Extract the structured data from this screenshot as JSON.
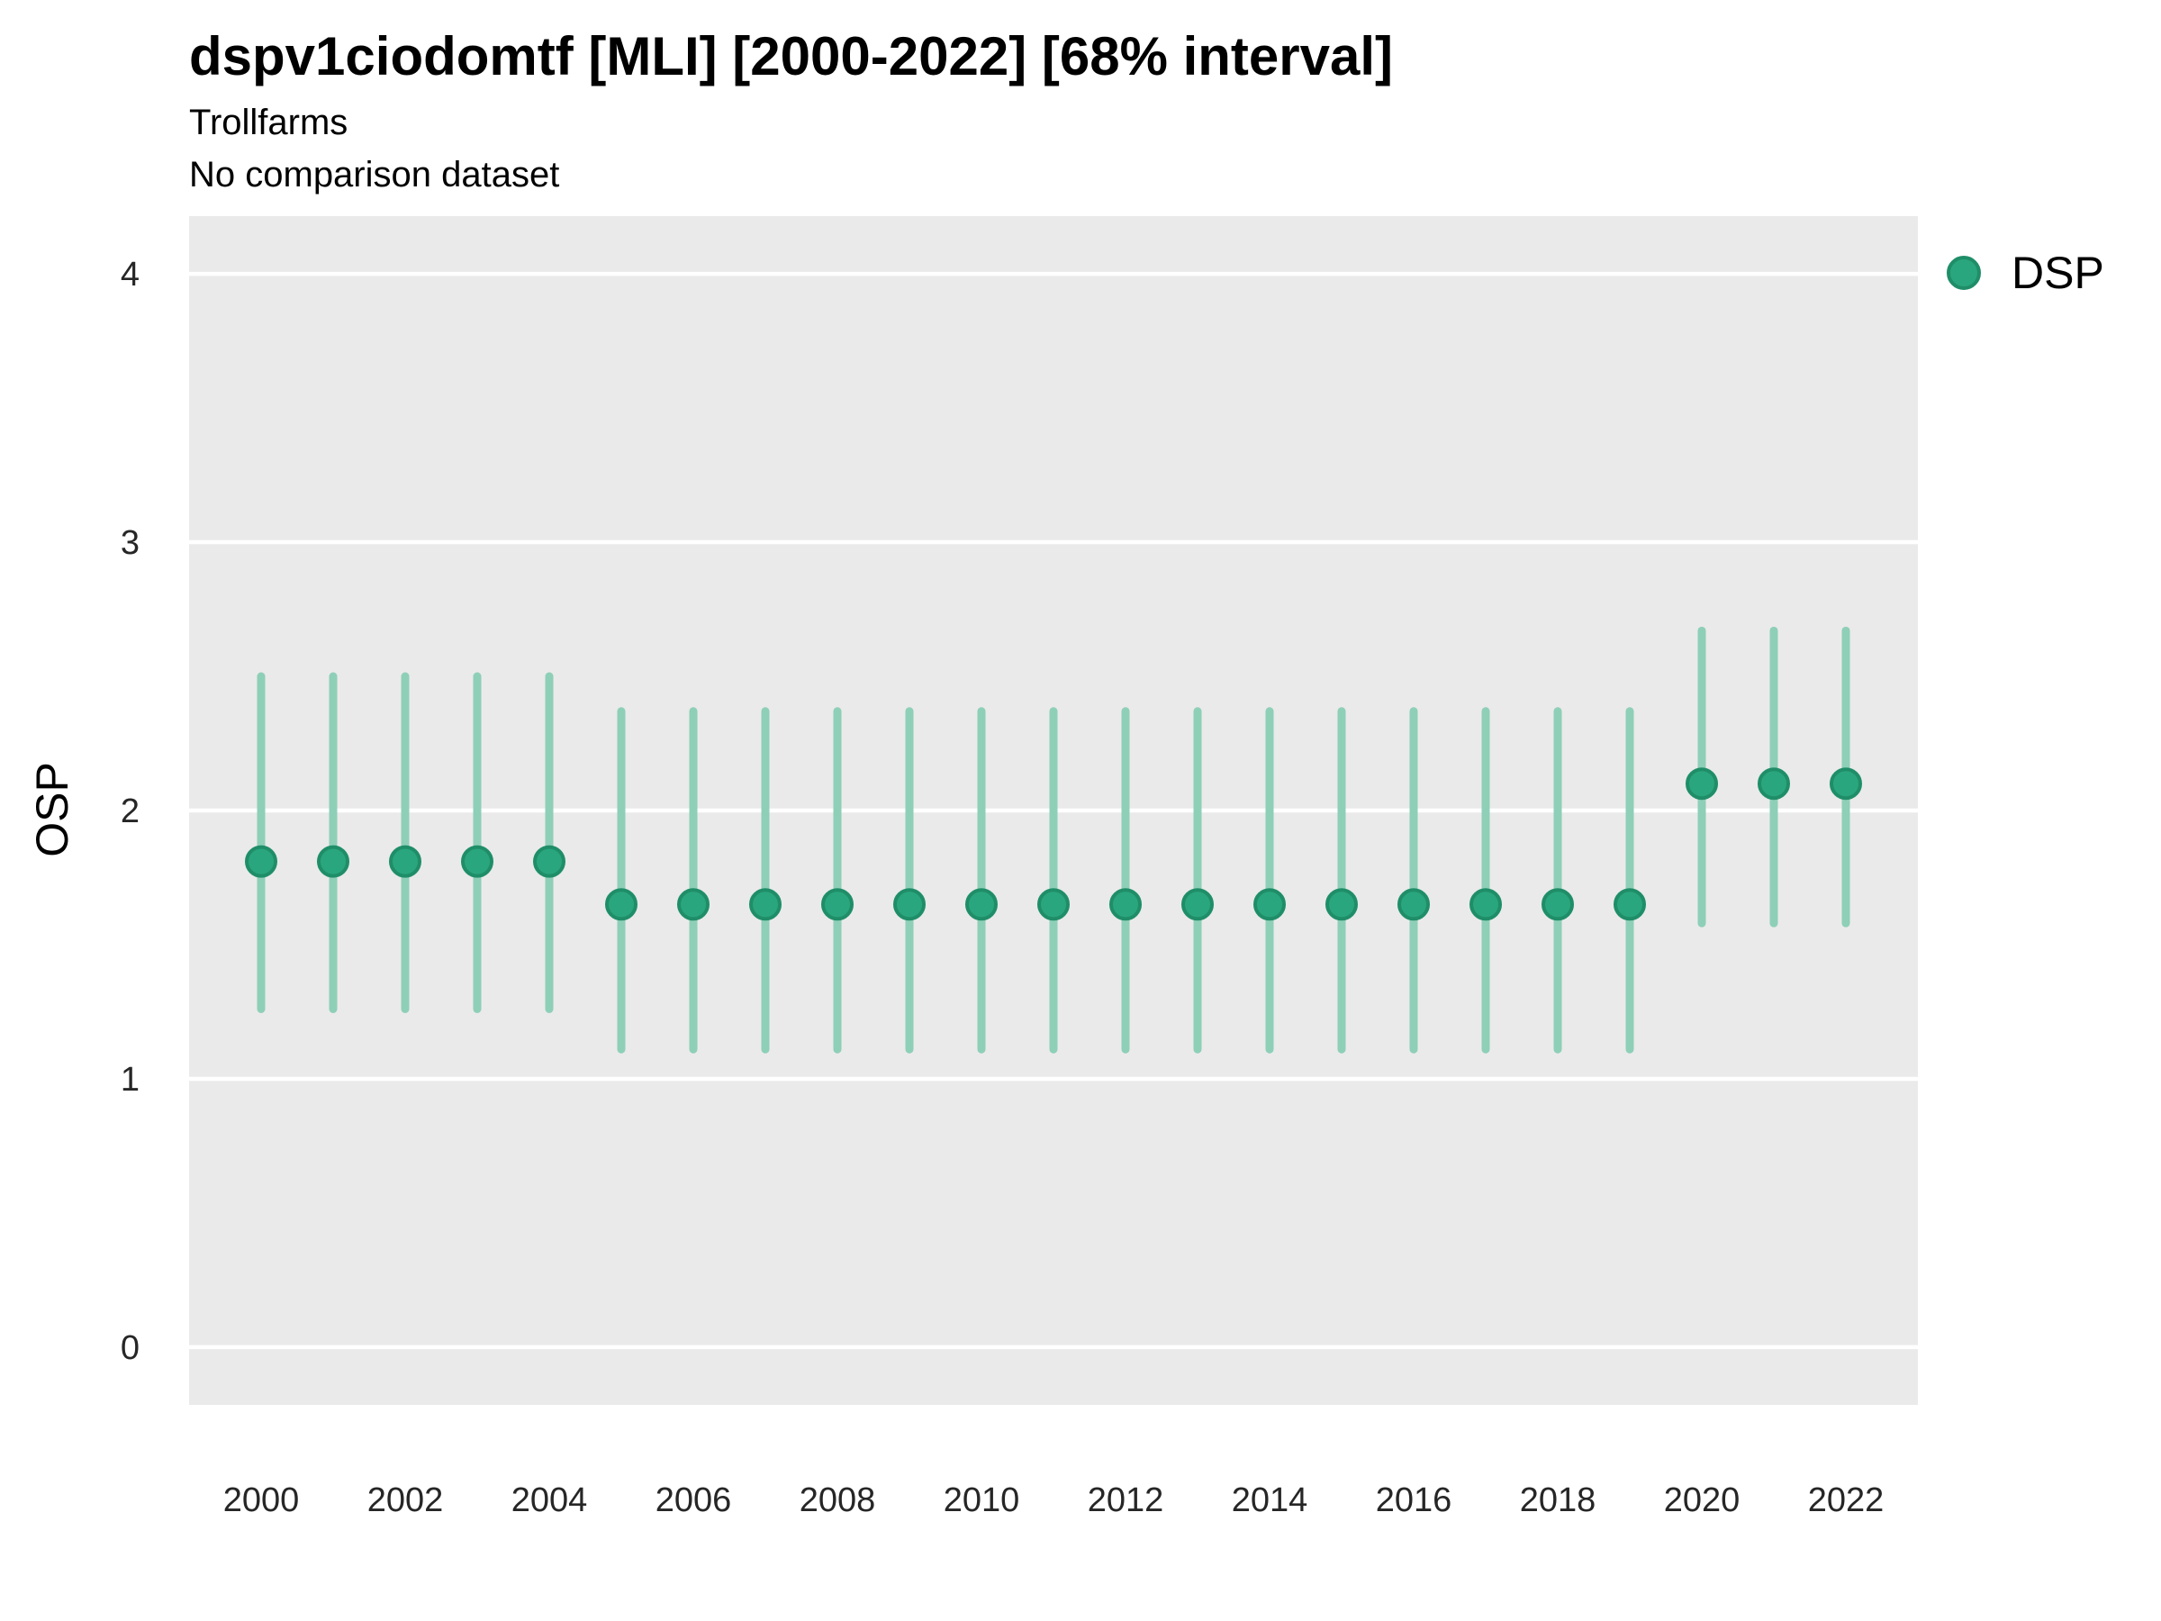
{
  "chart_data": {
    "type": "pointrange",
    "title": "dspv1ciodomtf [MLI] [2000-2022] [68% interval]",
    "subtitle": "Trollfarms",
    "note": "No comparison dataset",
    "xlabel": "",
    "ylabel": "OSP",
    "interval_level": "68%",
    "legend_position": "right",
    "legend": [
      {
        "label": "DSP",
        "color": "#2aa67e"
      }
    ],
    "x_tick_labels": [
      "2000",
      "2002",
      "2004",
      "2006",
      "2008",
      "2010",
      "2012",
      "2014",
      "2016",
      "2018",
      "2020",
      "2022"
    ],
    "y_ticks": [
      0,
      1,
      2,
      3,
      4
    ],
    "ylim": [
      -0.215,
      4.215
    ],
    "xlim": [
      1999,
      2023
    ],
    "grid": "horizontal-major-white",
    "colors": {
      "panel_bg": "#eaeaea",
      "gridline": "#ffffff",
      "point_fill": "#2aa67e",
      "point_stroke": "#1f8e68",
      "interval_line": "#8ecfb8",
      "tick_text": "#262626"
    },
    "series": [
      {
        "name": "DSP",
        "points": [
          {
            "x": 2000,
            "y": 1.81,
            "lo": 1.26,
            "hi": 2.5
          },
          {
            "x": 2001,
            "y": 1.81,
            "lo": 1.26,
            "hi": 2.5
          },
          {
            "x": 2002,
            "y": 1.81,
            "lo": 1.26,
            "hi": 2.5
          },
          {
            "x": 2003,
            "y": 1.81,
            "lo": 1.26,
            "hi": 2.5
          },
          {
            "x": 2004,
            "y": 1.81,
            "lo": 1.26,
            "hi": 2.5
          },
          {
            "x": 2005,
            "y": 1.65,
            "lo": 1.11,
            "hi": 2.37
          },
          {
            "x": 2006,
            "y": 1.65,
            "lo": 1.11,
            "hi": 2.37
          },
          {
            "x": 2007,
            "y": 1.65,
            "lo": 1.11,
            "hi": 2.37
          },
          {
            "x": 2008,
            "y": 1.65,
            "lo": 1.11,
            "hi": 2.37
          },
          {
            "x": 2009,
            "y": 1.65,
            "lo": 1.11,
            "hi": 2.37
          },
          {
            "x": 2010,
            "y": 1.65,
            "lo": 1.11,
            "hi": 2.37
          },
          {
            "x": 2011,
            "y": 1.65,
            "lo": 1.11,
            "hi": 2.37
          },
          {
            "x": 2012,
            "y": 1.65,
            "lo": 1.11,
            "hi": 2.37
          },
          {
            "x": 2013,
            "y": 1.65,
            "lo": 1.11,
            "hi": 2.37
          },
          {
            "x": 2014,
            "y": 1.65,
            "lo": 1.11,
            "hi": 2.37
          },
          {
            "x": 2015,
            "y": 1.65,
            "lo": 1.11,
            "hi": 2.37
          },
          {
            "x": 2016,
            "y": 1.65,
            "lo": 1.11,
            "hi": 2.37
          },
          {
            "x": 2017,
            "y": 1.65,
            "lo": 1.11,
            "hi": 2.37
          },
          {
            "x": 2018,
            "y": 1.65,
            "lo": 1.11,
            "hi": 2.37
          },
          {
            "x": 2019,
            "y": 1.65,
            "lo": 1.11,
            "hi": 2.37
          },
          {
            "x": 2020,
            "y": 2.1,
            "lo": 1.58,
            "hi": 2.67
          },
          {
            "x": 2021,
            "y": 2.1,
            "lo": 1.58,
            "hi": 2.67
          },
          {
            "x": 2022,
            "y": 2.1,
            "lo": 1.58,
            "hi": 2.67
          }
        ]
      }
    ]
  }
}
